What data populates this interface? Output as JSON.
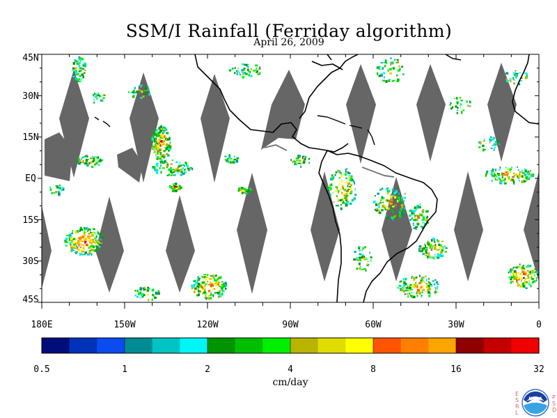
{
  "header": {
    "title": "SSM/I Rainfall (Ferriday algorithm)",
    "date": "April 26, 2009"
  },
  "map": {
    "lat_labels": [
      "45N",
      "30N",
      "15N",
      "EQ",
      "15S",
      "30S",
      "45S"
    ],
    "lat_values": [
      45,
      30,
      15,
      0,
      -15,
      -30,
      -45
    ],
    "lon_labels": [
      "180E",
      "150W",
      "120W",
      "90W",
      "60W",
      "30W",
      "0"
    ],
    "lon_values": [
      -180,
      -150,
      -120,
      -90,
      -60,
      -30,
      0
    ],
    "lon_range": [
      -180,
      0
    ],
    "lat_range": [
      -45,
      45
    ],
    "missing_swath_color": "#666666"
  },
  "colorbar": {
    "tick_labels": [
      "0.5",
      "1",
      "2",
      "4",
      "8",
      "16",
      "32"
    ],
    "colors": [
      "#000d7a",
      "#0033b8",
      "#0a4cf0",
      "#008c94",
      "#00c4c4",
      "#00f5f5",
      "#009400",
      "#00bf00",
      "#00f000",
      "#b8b400",
      "#e0dc00",
      "#ffff00",
      "#ff5500",
      "#ff7f00",
      "#ffa500",
      "#8f0000",
      "#c40000",
      "#f00000"
    ],
    "units": "cm/day"
  },
  "logo": {
    "left_letters": [
      "E",
      "S",
      "R",
      "L"
    ],
    "right_letters": [
      "P",
      "S",
      "D"
    ],
    "emblem_text": "NOAA"
  }
}
